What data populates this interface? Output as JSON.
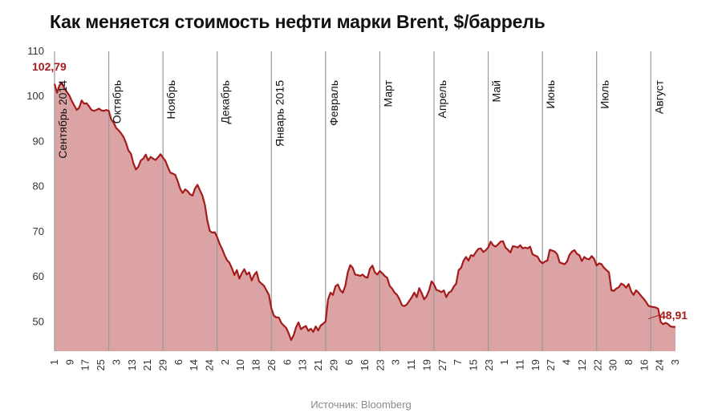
{
  "chart_data": {
    "type": "area",
    "title": "Как меняется стоимость нефти марки Brent, $/баррель",
    "source": "Источник: Bloomberg",
    "xlabel": "",
    "ylabel": "",
    "ylim": [
      43.5,
      110
    ],
    "yticks": [
      50,
      60,
      70,
      80,
      90,
      100,
      110
    ],
    "colors": {
      "line": "#a51b1b",
      "fill": "#dba3a3",
      "label": "#a51b1b",
      "grid": "#999999"
    },
    "start_value": "102,79",
    "end_value": "48,91",
    "months": [
      "Сентябрь 2014",
      "Октябрь",
      "Ноябрь",
      "Декабрь",
      "Январь 2015",
      "Февраль",
      "Март",
      "Апрель",
      "Май",
      "Июнь",
      "Июль",
      "Август"
    ],
    "month_start_index": [
      0,
      22,
      44,
      66,
      88,
      110,
      132,
      154,
      176,
      198,
      220,
      242
    ],
    "x_tick_labels": [
      "1",
      "9",
      "17",
      "25",
      "3",
      "13",
      "21",
      "29",
      "6",
      "14",
      "24",
      "2",
      "10",
      "18",
      "26",
      "6",
      "13",
      "21",
      "29",
      "6",
      "16",
      "23",
      "3",
      "11",
      "19",
      "27",
      "7",
      "15",
      "23",
      "1",
      "11",
      "19",
      "27",
      "4",
      "12",
      "22",
      "30",
      "8",
      "16",
      "24",
      "3"
    ],
    "series": [
      {
        "name": "Brent",
        "values": [
          102.79,
          100.8,
          102.5,
          103.0,
          101.8,
          101.0,
          100.2,
          99.0,
          98.0,
          97.0,
          97.5,
          99.1,
          98.4,
          98.5,
          97.8,
          97.0,
          96.8,
          97.0,
          97.3,
          96.9,
          96.8,
          97.0,
          96.8,
          94.9,
          94.2,
          93.0,
          92.5,
          91.8,
          91.0,
          89.7,
          88.0,
          87.3,
          85.2,
          83.8,
          84.4,
          85.8,
          86.2,
          87.1,
          85.8,
          86.6,
          86.2,
          85.9,
          86.5,
          87.2,
          86.4,
          85.7,
          84.3,
          83.1,
          82.9,
          82.6,
          81.2,
          79.5,
          78.6,
          79.4,
          79.0,
          78.3,
          78.0,
          79.6,
          80.4,
          79.2,
          78.0,
          76.0,
          72.5,
          70.2,
          69.8,
          69.9,
          68.8,
          67.3,
          66.2,
          64.8,
          63.7,
          63.1,
          61.9,
          60.4,
          61.5,
          59.6,
          60.8,
          61.7,
          60.5,
          61.0,
          59.2,
          60.4,
          61.1,
          59.0,
          58.5,
          58.0,
          57.0,
          56.0,
          53.0,
          51.4,
          51.0,
          51.0,
          49.8,
          49.2,
          48.7,
          47.5,
          46.0,
          47.0,
          48.8,
          49.9,
          48.4,
          48.8,
          49.1,
          48.0,
          48.5,
          47.8,
          49.0,
          48.1,
          49.2,
          49.6,
          50.1,
          55.0,
          56.5,
          56.0,
          57.9,
          58.3,
          57.0,
          56.5,
          58.0,
          61.0,
          62.6,
          62.0,
          60.5,
          60.4,
          60.2,
          60.5,
          60.0,
          59.8,
          61.8,
          62.5,
          61.0,
          60.5,
          61.3,
          60.8,
          60.2,
          59.8,
          58.0,
          57.4,
          56.5,
          56.0,
          55.0,
          53.7,
          53.5,
          53.9,
          54.7,
          55.5,
          56.5,
          55.5,
          57.5,
          56.4,
          55.0,
          55.7,
          57.0,
          59.0,
          58.3,
          57.1,
          56.9,
          56.6,
          57.0,
          55.5,
          56.5,
          56.8,
          57.8,
          58.5,
          61.5,
          62.0,
          63.6,
          64.4,
          63.6,
          64.8,
          64.6,
          65.5,
          66.2,
          66.3,
          65.5,
          65.9,
          66.5,
          67.8,
          67.0,
          66.7,
          67.2,
          67.8,
          67.9,
          66.5,
          66.0,
          65.4,
          66.8,
          66.7,
          66.5,
          67.0,
          66.3,
          66.5,
          66.3,
          66.7,
          65.0,
          64.7,
          64.5,
          63.5,
          63.0,
          63.4,
          63.6,
          66.0,
          65.8,
          65.6,
          65.0,
          63.2,
          63.0,
          62.8,
          63.4,
          64.9,
          65.6,
          65.9,
          65.1,
          64.8,
          63.5,
          64.4,
          64.0,
          63.9,
          64.6,
          64.0,
          62.5,
          63.0,
          62.8,
          62.0,
          61.5,
          61.0,
          57.0,
          56.9,
          57.4,
          57.7,
          58.5,
          58.2,
          57.6,
          58.4,
          56.8,
          56.0,
          57.0,
          56.5,
          55.8,
          55.2,
          54.5,
          53.6,
          53.4,
          53.3,
          53.2,
          52.9,
          50.0,
          49.5,
          49.8,
          49.5,
          49.0,
          48.9,
          48.91
        ]
      }
    ]
  }
}
